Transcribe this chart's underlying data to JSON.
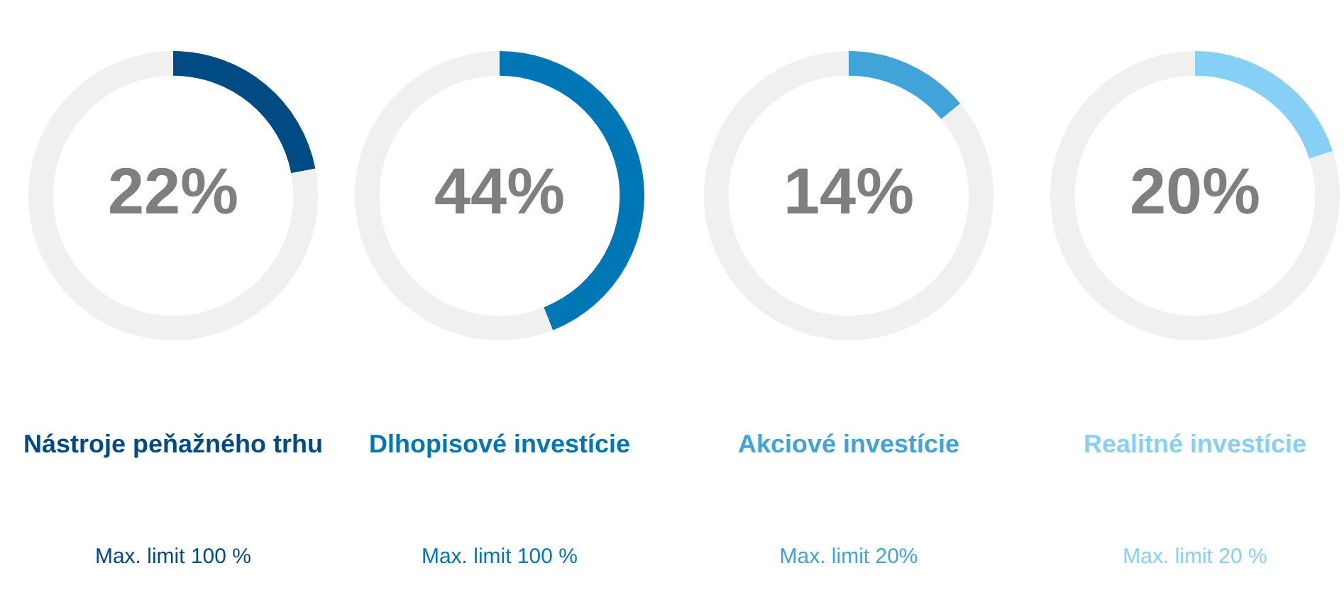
{
  "chart_data": [
    {
      "type": "donut",
      "title": "Nástroje peňažného trhu",
      "categories": [
        null,
        null
      ],
      "values": [
        22,
        78
      ],
      "colors": [
        "#004b84",
        "#f0f0f0"
      ],
      "value_labels": [
        "22%",
        null
      ],
      "annotations": [
        "Max. limit 100 %"
      ]
    },
    {
      "type": "donut",
      "title": "Dlhopisové investície",
      "categories": [
        null,
        null
      ],
      "values": [
        44,
        56
      ],
      "colors": [
        "#0077b5",
        "#f0f0f0"
      ],
      "value_labels": [
        "44%",
        null
      ],
      "annotations": [
        "Max. limit 100 %"
      ]
    },
    {
      "type": "donut",
      "title": "Akciové investície",
      "categories": [
        null,
        null
      ],
      "values": [
        14,
        86
      ],
      "colors": [
        "#41a4d8",
        "#f0f0f0"
      ],
      "value_labels": [
        "14%",
        null
      ],
      "annotations": [
        "Max. limit 20%"
      ]
    },
    {
      "type": "donut",
      "title": "Realitné investície",
      "categories": [
        null,
        null
      ],
      "values": [
        20,
        80
      ],
      "colors": [
        "#85d0f4",
        "#f0f0f0"
      ],
      "value_labels": [
        "20%",
        null
      ],
      "annotations": [
        "Max. limit 20 %"
      ]
    }
  ]
}
